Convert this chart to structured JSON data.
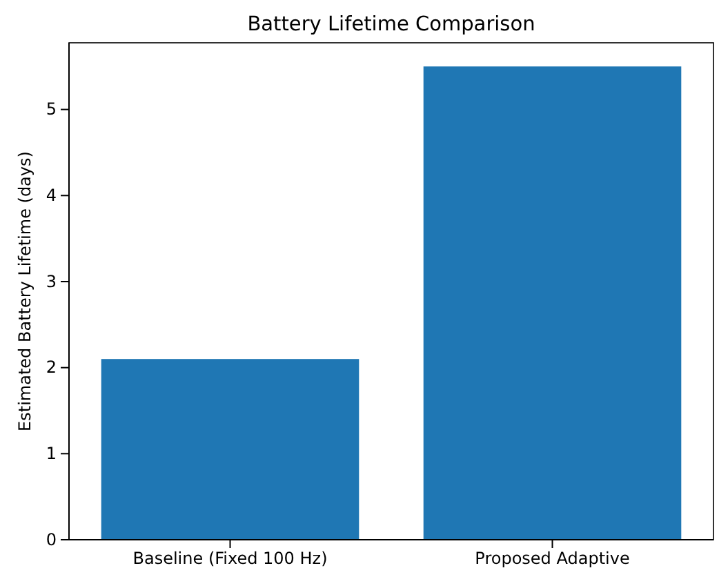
{
  "chart_data": {
    "type": "bar",
    "title": "Battery Lifetime Comparison",
    "ylabel": "Estimated Battery Lifetime (days)",
    "categories": [
      "Baseline (Fixed 100 Hz)",
      "Proposed Adaptive"
    ],
    "values": [
      2.1,
      5.5
    ],
    "color": "#1f77b4",
    "ylim": [
      0,
      5.775
    ],
    "yticks": [
      0,
      1,
      2,
      3,
      4,
      5
    ],
    "grid": false,
    "legend": false
  }
}
